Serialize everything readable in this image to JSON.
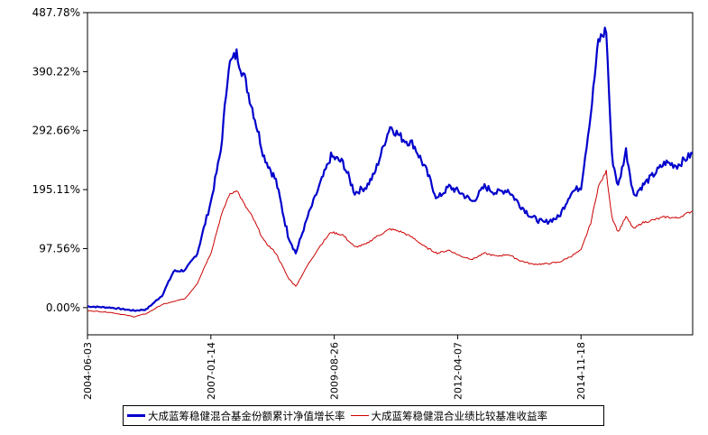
{
  "chart_data": {
    "type": "line",
    "y_ticks": [
      "0.00%",
      "97.56%",
      "195.11%",
      "292.66%",
      "390.22%",
      "487.78%"
    ],
    "y_tick_values": [
      0,
      97.56,
      195.11,
      292.66,
      390.22,
      487.78
    ],
    "ylim": [
      -45,
      487.78
    ],
    "x_ticks": [
      "2004-06-03",
      "2007-01-14",
      "2009-08-26",
      "2012-04-07",
      "2014-11-18"
    ],
    "xlim": [
      "2004-06-03",
      "2017-03-31"
    ],
    "grid": false,
    "legend_position": "bottom",
    "series": [
      {
        "name": "大成蓝筹稳健混合基金份额累计净值增长率",
        "color": "#0000cc",
        "x": [
          "2004-06-03",
          "2004-12-01",
          "2005-06-01",
          "2005-09-01",
          "2006-01-01",
          "2006-04-01",
          "2006-07-01",
          "2006-10-01",
          "2006-12-01",
          "2007-01-14",
          "2007-04-01",
          "2007-06-01",
          "2007-08-01",
          "2007-10-01",
          "2007-12-01",
          "2008-03-01",
          "2008-06-01",
          "2008-09-01",
          "2008-11-01",
          "2009-02-01",
          "2009-05-01",
          "2009-08-01",
          "2009-11-01",
          "2010-02-01",
          "2010-05-01",
          "2010-07-01",
          "2010-11-01",
          "2011-02-01",
          "2011-05-01",
          "2011-08-01",
          "2011-11-01",
          "2012-02-01",
          "2012-05-01",
          "2012-08-01",
          "2012-11-01",
          "2013-02-01",
          "2013-05-01",
          "2013-08-01",
          "2013-11-01",
          "2014-02-01",
          "2014-06-01",
          "2014-09-01",
          "2014-11-18",
          "2015-02-01",
          "2015-04-01",
          "2015-06-01",
          "2015-07-15",
          "2015-09-01",
          "2015-11-01",
          "2016-01-01",
          "2016-03-01",
          "2016-06-01",
          "2016-09-01",
          "2016-12-01",
          "2017-03-31"
        ],
        "values": [
          2,
          0,
          -5,
          -3,
          20,
          60,
          62,
          90,
          140,
          175,
          260,
          400,
          420,
          380,
          330,
          250,
          210,
          120,
          90,
          150,
          200,
          250,
          240,
          190,
          200,
          220,
          300,
          280,
          270,
          230,
          180,
          200,
          190,
          175,
          200,
          190,
          195,
          170,
          150,
          140,
          150,
          190,
          200,
          320,
          440,
          460,
          250,
          200,
          260,
          185,
          200,
          220,
          240,
          235,
          255
        ]
      },
      {
        "name": "大成蓝筹稳健混合业绩比较基准收益率",
        "color": "#cc0000",
        "x": [
          "2004-06-03",
          "2004-12-01",
          "2005-06-01",
          "2005-09-01",
          "2006-01-01",
          "2006-04-01",
          "2006-07-01",
          "2006-10-01",
          "2006-12-01",
          "2007-01-14",
          "2007-04-01",
          "2007-06-01",
          "2007-08-01",
          "2007-10-01",
          "2007-12-01",
          "2008-03-01",
          "2008-06-01",
          "2008-09-01",
          "2008-11-01",
          "2009-02-01",
          "2009-05-01",
          "2009-08-01",
          "2009-11-01",
          "2010-02-01",
          "2010-05-01",
          "2010-07-01",
          "2010-11-01",
          "2011-02-01",
          "2011-05-01",
          "2011-08-01",
          "2011-11-01",
          "2012-02-01",
          "2012-05-01",
          "2012-08-01",
          "2012-11-01",
          "2013-02-01",
          "2013-05-01",
          "2013-08-01",
          "2013-11-01",
          "2014-02-01",
          "2014-06-01",
          "2014-09-01",
          "2014-11-18",
          "2015-02-01",
          "2015-04-01",
          "2015-06-01",
          "2015-07-15",
          "2015-09-01",
          "2015-11-01",
          "2016-01-01",
          "2016-03-01",
          "2016-06-01",
          "2016-09-01",
          "2016-12-01",
          "2017-03-31"
        ],
        "values": [
          -5,
          -8,
          -15,
          -10,
          5,
          10,
          15,
          40,
          70,
          90,
          150,
          185,
          195,
          170,
          150,
          110,
          90,
          50,
          35,
          70,
          100,
          125,
          120,
          100,
          105,
          115,
          130,
          125,
          115,
          100,
          90,
          95,
          85,
          80,
          90,
          85,
          88,
          78,
          72,
          72,
          75,
          85,
          95,
          140,
          200,
          225,
          150,
          125,
          150,
          130,
          140,
          145,
          150,
          148,
          160
        ]
      }
    ]
  }
}
